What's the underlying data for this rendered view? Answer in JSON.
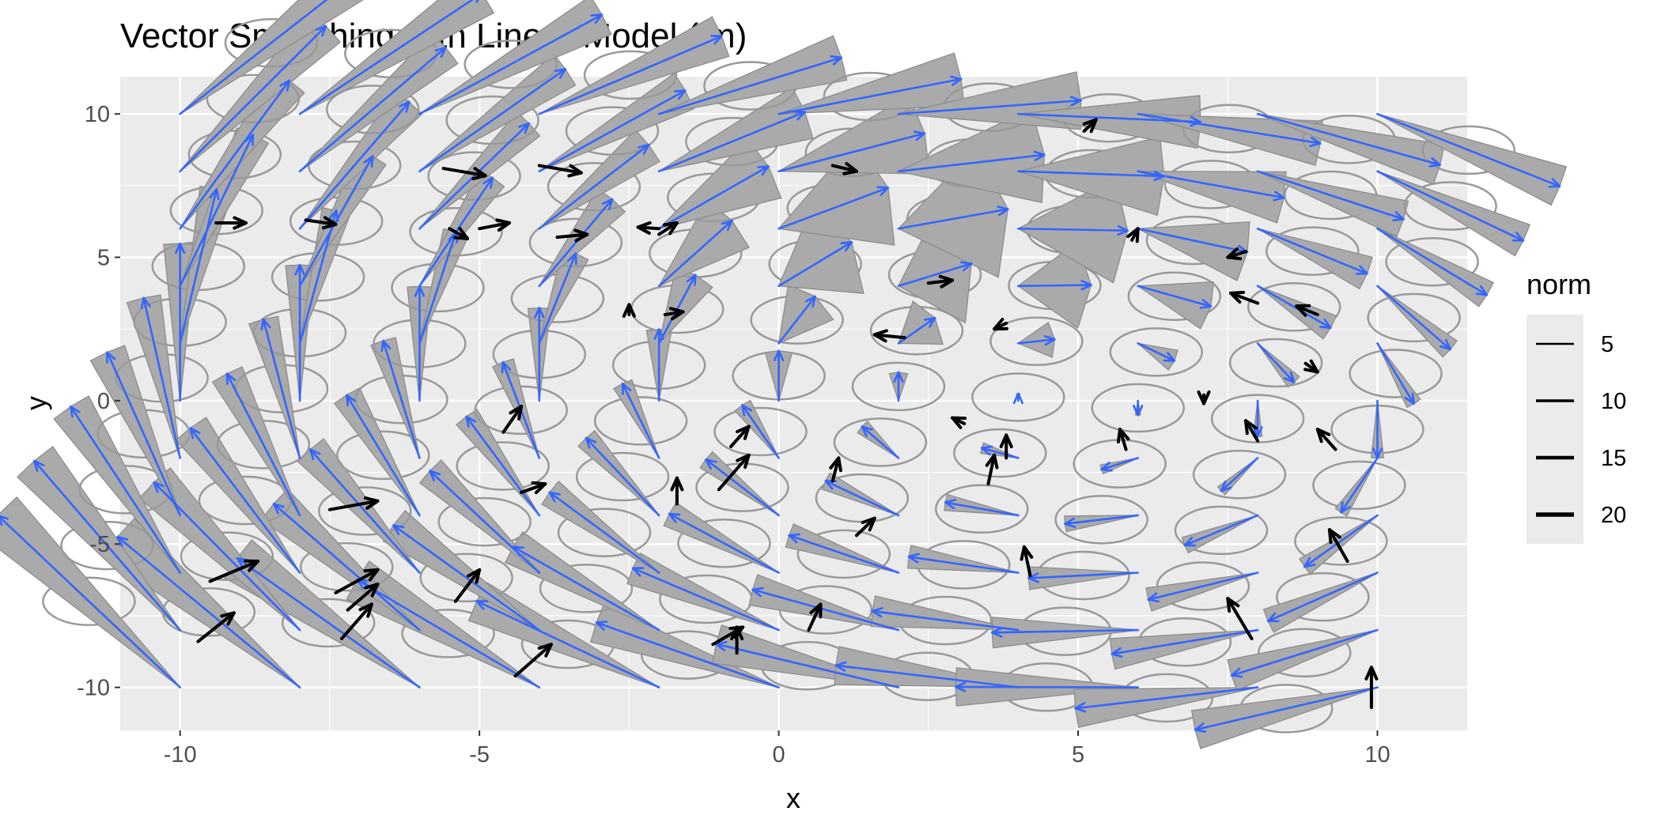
{
  "chart_data": {
    "type": "vector-field",
    "title": "Vector Smoothing with Linear Model (lm)",
    "xlabel": "x",
    "ylabel": "y",
    "xlim": [
      -11.0,
      11.5
    ],
    "ylim": [
      -11.5,
      11.3
    ],
    "x_ticks": [
      -10,
      -5,
      0,
      5,
      10
    ],
    "y_ticks": [
      -10,
      -5,
      0,
      5,
      10
    ],
    "tick_labels_x": [
      "-10",
      "-5",
      "0",
      "5",
      "10"
    ],
    "tick_labels_y": [
      "-10",
      "-5",
      "0",
      "5",
      "10"
    ],
    "grid": true,
    "legend": {
      "title": "norm",
      "position": "right",
      "entries": [
        {
          "label": "5",
          "value": 5
        },
        {
          "label": "10",
          "value": 10
        },
        {
          "label": "15",
          "value": 15
        },
        {
          "label": "20",
          "value": 20
        }
      ]
    },
    "colors": {
      "panel": "#ebebeb",
      "grid": "#ffffff",
      "raw_vector": "#000000",
      "smoothed_vector": "#3366ff",
      "uncertainty_ellipse": "#999999",
      "wedge_fill": "#aaaaaa"
    },
    "grid_points": {
      "x": [
        -10,
        -8,
        -6,
        -4,
        -2,
        0,
        2,
        4,
        6,
        8,
        10
      ],
      "y": [
        -10,
        -8,
        -6,
        -4,
        -2,
        0,
        2,
        4,
        6,
        8,
        10
      ]
    },
    "smoothed_vector_model": {
      "dx": "0.0 + 0.035*y",
      "dy": "0.2 - 0.043*x - 0.006*y",
      "angle_uncertainty_deg": "6 + 40*exp(-((x-2)^2 + (y-4)^2)/14)"
    },
    "raw_vectors": [
      {
        "x": -9.4,
        "y": 6.2,
        "dx": 0.5,
        "dy": 0.0
      },
      {
        "x": -7.9,
        "y": 6.3,
        "dx": 0.5,
        "dy": -0.15
      },
      {
        "x": -5.0,
        "y": 6.0,
        "dx": 0.5,
        "dy": 0.2
      },
      {
        "x": -5.6,
        "y": 8.1,
        "dx": 0.7,
        "dy": -0.25
      },
      {
        "x": -5.5,
        "y": 6.0,
        "dx": 0.3,
        "dy": -0.35
      },
      {
        "x": -4.0,
        "y": 8.2,
        "dx": 0.7,
        "dy": -0.25
      },
      {
        "x": -3.7,
        "y": 5.7,
        "dx": 0.5,
        "dy": 0.1
      },
      {
        "x": -2.0,
        "y": 5.8,
        "dx": 0.3,
        "dy": 0.4
      },
      {
        "x": -2.0,
        "y": 6.0,
        "dx": -0.35,
        "dy": 0.05
      },
      {
        "x": 0.9,
        "y": 8.2,
        "dx": 0.4,
        "dy": -0.2
      },
      {
        "x": 5.1,
        "y": 9.4,
        "dx": 0.2,
        "dy": 0.4
      },
      {
        "x": 5.9,
        "y": 5.6,
        "dx": 0.1,
        "dy": 0.4
      },
      {
        "x": 7.8,
        "y": 5.2,
        "dx": -0.3,
        "dy": -0.2
      },
      {
        "x": 2.5,
        "y": 4.1,
        "dx": 0.4,
        "dy": 0.1
      },
      {
        "x": -2.5,
        "y": 3.0,
        "dx": 0.0,
        "dy": 0.35
      },
      {
        "x": -1.9,
        "y": 3.0,
        "dx": 0.3,
        "dy": 0.1
      },
      {
        "x": 3.8,
        "y": 2.7,
        "dx": -0.2,
        "dy": -0.2
      },
      {
        "x": 8.0,
        "y": 3.4,
        "dx": -0.45,
        "dy": 0.35
      },
      {
        "x": 9.0,
        "y": 3.0,
        "dx": -0.35,
        "dy": 0.3
      },
      {
        "x": 2.1,
        "y": 2.2,
        "dx": -0.5,
        "dy": 0.1
      },
      {
        "x": 8.8,
        "y": 1.3,
        "dx": 0.2,
        "dy": -0.3
      },
      {
        "x": 7.1,
        "y": 0.2,
        "dx": 0.0,
        "dy": -0.3
      },
      {
        "x": -4.6,
        "y": -1.1,
        "dx": 0.3,
        "dy": 0.9
      },
      {
        "x": -0.8,
        "y": -1.6,
        "dx": 0.3,
        "dy": 0.7
      },
      {
        "x": 3.1,
        "y": -0.8,
        "dx": -0.2,
        "dy": 0.2
      },
      {
        "x": 5.8,
        "y": -1.7,
        "dx": -0.1,
        "dy": 0.7
      },
      {
        "x": 8.0,
        "y": -1.4,
        "dx": -0.2,
        "dy": 0.7
      },
      {
        "x": 9.3,
        "y": -1.7,
        "dx": -0.3,
        "dy": 0.7
      },
      {
        "x": -4.3,
        "y": -3.2,
        "dx": 0.4,
        "dy": 0.3
      },
      {
        "x": -1.7,
        "y": -3.6,
        "dx": 0.0,
        "dy": 0.9
      },
      {
        "x": -1.0,
        "y": -3.1,
        "dx": 0.5,
        "dy": 1.2
      },
      {
        "x": 0.9,
        "y": -2.8,
        "dx": 0.1,
        "dy": 0.8
      },
      {
        "x": 3.5,
        "y": -2.9,
        "dx": 0.1,
        "dy": 1.0
      },
      {
        "x": 3.8,
        "y": -2.0,
        "dx": 0.0,
        "dy": 0.8
      },
      {
        "x": -7.5,
        "y": -3.8,
        "dx": 0.8,
        "dy": 0.3
      },
      {
        "x": 1.3,
        "y": -4.7,
        "dx": 0.3,
        "dy": 0.6
      },
      {
        "x": 9.5,
        "y": -5.6,
        "dx": -0.3,
        "dy": 1.1
      },
      {
        "x": -9.5,
        "y": -6.3,
        "dx": 0.8,
        "dy": 0.7
      },
      {
        "x": -7.4,
        "y": -6.7,
        "dx": 0.7,
        "dy": 0.8
      },
      {
        "x": -7.2,
        "y": -7.3,
        "dx": 0.5,
        "dy": 0.9
      },
      {
        "x": -7.3,
        "y": -8.3,
        "dx": 0.5,
        "dy": 1.2
      },
      {
        "x": -5.4,
        "y": -7.0,
        "dx": 0.4,
        "dy": 1.1
      },
      {
        "x": 4.2,
        "y": -6.1,
        "dx": -0.1,
        "dy": 1.0
      },
      {
        "x": 0.5,
        "y": -8.0,
        "dx": 0.2,
        "dy": 0.9
      },
      {
        "x": 7.9,
        "y": -8.3,
        "dx": -0.4,
        "dy": 1.4
      },
      {
        "x": -9.7,
        "y": -8.4,
        "dx": 0.6,
        "dy": 1.0
      },
      {
        "x": -4.4,
        "y": -9.6,
        "dx": 0.6,
        "dy": 1.1
      },
      {
        "x": -1.1,
        "y": -8.5,
        "dx": 0.5,
        "dy": 0.6
      },
      {
        "x": -0.7,
        "y": -8.8,
        "dx": 0.0,
        "dy": 0.9
      },
      {
        "x": 9.9,
        "y": -10.7,
        "dx": 0.0,
        "dy": 1.4
      }
    ]
  }
}
